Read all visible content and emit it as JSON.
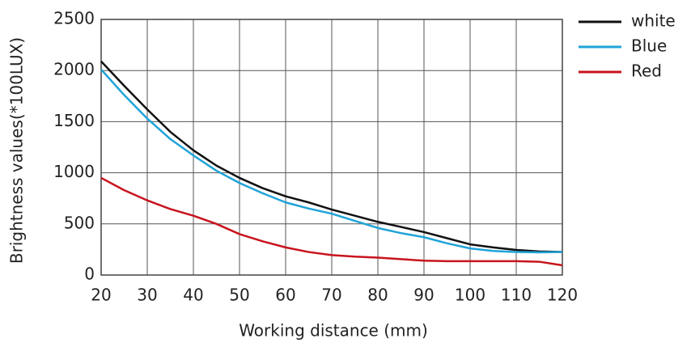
{
  "chart_data": {
    "type": "line",
    "x_label": "Working distance  (mm)",
    "y_label": "Brightness values(*100LUX)",
    "x": [
      20,
      25,
      30,
      35,
      40,
      45,
      50,
      55,
      60,
      65,
      70,
      75,
      80,
      85,
      90,
      95,
      100,
      105,
      110,
      115,
      120
    ],
    "series": [
      {
        "name": "white",
        "color": "#111111",
        "values": [
          2090,
          1850,
          1620,
          1400,
          1220,
          1070,
          950,
          850,
          770,
          710,
          640,
          580,
          520,
          470,
          420,
          360,
          300,
          270,
          245,
          230,
          225
        ]
      },
      {
        "name": "Blue",
        "color": "#1fa3d8",
        "values": [
          2010,
          1760,
          1530,
          1330,
          1170,
          1020,
          900,
          800,
          710,
          650,
          600,
          530,
          460,
          410,
          370,
          310,
          260,
          235,
          225,
          222,
          225
        ]
      },
      {
        "name": "Red",
        "color": "#c8141e",
        "values": [
          950,
          830,
          730,
          645,
          580,
          500,
          400,
          330,
          270,
          225,
          195,
          180,
          170,
          155,
          140,
          135,
          135,
          135,
          135,
          130,
          95
        ]
      }
    ],
    "xlim": [
      20,
      120
    ],
    "xticks": [
      20,
      30,
      40,
      50,
      60,
      70,
      80,
      90,
      100,
      110,
      120
    ],
    "ylim": [
      0,
      2500
    ],
    "yticks": [
      0,
      500,
      1000,
      1500,
      2000,
      2500
    ],
    "grid": true,
    "legend": "outside-top-right"
  }
}
